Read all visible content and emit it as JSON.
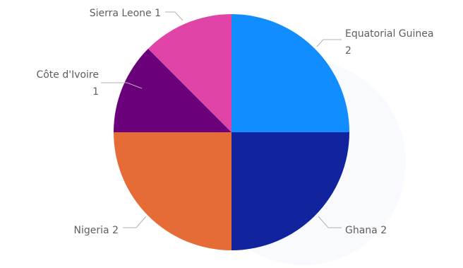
{
  "chart_data": {
    "type": "pie",
    "title": "",
    "legend": "none",
    "slices": [
      {
        "label": "Equatorial Guinea",
        "value": 2,
        "color": "#118DFF",
        "label_lines": [
          "Equatorial Guinea",
          "2"
        ]
      },
      {
        "label": "Ghana",
        "value": 2,
        "color": "#12239E",
        "label_lines": [
          "Ghana 2"
        ]
      },
      {
        "label": "Nigeria",
        "value": 2,
        "color": "#E66C37",
        "label_lines": [
          "Nigeria 2"
        ]
      },
      {
        "label": "Côte d'Ivoire",
        "value": 1,
        "color": "#6B007B",
        "label_lines": [
          "Côte d'Ivoire",
          "1"
        ]
      },
      {
        "label": "Sierra Leone",
        "value": 1,
        "color": "#E044A7",
        "label_lines": [
          "Sierra Leone 1"
        ]
      }
    ]
  }
}
